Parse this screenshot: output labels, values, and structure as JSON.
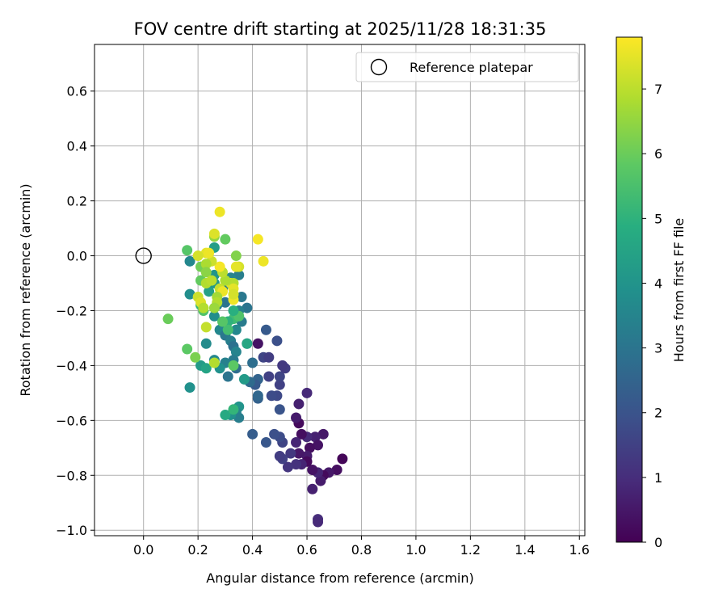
{
  "chart_data": {
    "type": "scatter",
    "title": "FOV centre drift starting at 2025/11/28 18:31:35",
    "xlabel": "Angular distance from reference (arcmin)",
    "ylabel": "Rotation from reference (arcmin)",
    "xlim": [
      -0.18,
      1.62
    ],
    "ylim": [
      -1.02,
      0.77
    ],
    "xticks": [
      "0.0",
      "0.2",
      "0.4",
      "0.6",
      "0.8",
      "1.0",
      "1.2",
      "1.4",
      "1.6"
    ],
    "xtick_values": [
      0,
      0.2,
      0.4,
      0.6,
      0.8,
      1.0,
      1.2,
      1.4,
      1.6
    ],
    "yticks": [
      "−1.0",
      "−0.8",
      "−0.6",
      "−0.4",
      "−0.2",
      "0.0",
      "0.2",
      "0.4",
      "0.6"
    ],
    "ytick_values": [
      -1.0,
      -0.8,
      -0.6,
      -0.4,
      -0.2,
      0.0,
      0.2,
      0.4,
      0.6
    ],
    "grid": true,
    "legend": {
      "position": "top-right",
      "label": "Reference platepar"
    },
    "reference_point": [
      0.0,
      0.0
    ],
    "colorbar": {
      "label": "Hours from first FF file",
      "range": [
        0,
        7.8
      ],
      "ticks": [
        "0",
        "1",
        "2",
        "3",
        "4",
        "5",
        "6",
        "7"
      ],
      "tick_values": [
        0,
        1,
        2,
        3,
        4,
        5,
        6,
        7
      ],
      "colormap": "viridis"
    },
    "points": [
      [
        0.73,
        -0.74,
        0.1
      ],
      [
        0.71,
        -0.78,
        0.3
      ],
      [
        0.68,
        -0.79,
        0.5
      ],
      [
        0.66,
        -0.8,
        0.2
      ],
      [
        0.65,
        -0.82,
        0.6
      ],
      [
        0.64,
        -0.79,
        0.8
      ],
      [
        0.62,
        -0.78,
        0.4
      ],
      [
        0.62,
        -0.85,
        0.7
      ],
      [
        0.64,
        -0.96,
        1.0
      ],
      [
        0.64,
        -0.97,
        0.9
      ],
      [
        0.66,
        -0.65,
        0.5
      ],
      [
        0.63,
        -0.66,
        0.7
      ],
      [
        0.64,
        -0.69,
        0.4
      ],
      [
        0.6,
        -0.66,
        0.9
      ],
      [
        0.61,
        -0.7,
        0.3
      ],
      [
        0.6,
        -0.73,
        0.6
      ],
      [
        0.6,
        -0.75,
        0.2
      ],
      [
        0.58,
        -0.76,
        0.8
      ],
      [
        0.56,
        -0.76,
        1.1
      ],
      [
        0.57,
        -0.72,
        0.5
      ],
      [
        0.58,
        -0.65,
        0.3
      ],
      [
        0.56,
        -0.68,
        0.8
      ],
      [
        0.57,
        -0.61,
        0.2
      ],
      [
        0.56,
        -0.59,
        0.6
      ],
      [
        0.57,
        -0.54,
        0.7
      ],
      [
        0.6,
        -0.5,
        0.9
      ],
      [
        0.54,
        -0.72,
        1.3
      ],
      [
        0.53,
        -0.77,
        1.2
      ],
      [
        0.51,
        -0.74,
        1.5
      ],
      [
        0.5,
        -0.73,
        1.4
      ],
      [
        0.51,
        -0.68,
        1.6
      ],
      [
        0.5,
        -0.66,
        1.8
      ],
      [
        0.48,
        -0.65,
        1.9
      ],
      [
        0.5,
        -0.47,
        1.5
      ],
      [
        0.5,
        -0.44,
        1.6
      ],
      [
        0.52,
        -0.41,
        1.4
      ],
      [
        0.51,
        -0.4,
        1.3
      ],
      [
        0.49,
        -0.51,
        1.7
      ],
      [
        0.47,
        -0.51,
        1.8
      ],
      [
        0.46,
        -0.44,
        1.5
      ],
      [
        0.44,
        -0.37,
        1.6
      ],
      [
        0.46,
        -0.37,
        1.4
      ],
      [
        0.42,
        -0.32,
        0.4
      ],
      [
        0.45,
        -0.27,
        2.2
      ],
      [
        0.49,
        -0.31,
        1.9
      ],
      [
        0.5,
        -0.56,
        2.0
      ],
      [
        0.45,
        -0.68,
        2.1
      ],
      [
        0.4,
        -0.65,
        2.3
      ],
      [
        0.42,
        -0.52,
        2.4
      ],
      [
        0.42,
        -0.45,
        2.5
      ],
      [
        0.41,
        -0.47,
        2.2
      ],
      [
        0.42,
        -0.51,
        2.6
      ],
      [
        0.39,
        -0.46,
        2.7
      ],
      [
        0.4,
        -0.39,
        2.8
      ],
      [
        0.38,
        -0.32,
        2.9
      ],
      [
        0.38,
        -0.19,
        3.0
      ],
      [
        0.36,
        -0.24,
        3.2
      ],
      [
        0.35,
        -0.2,
        3.4
      ],
      [
        0.36,
        -0.15,
        3.1
      ],
      [
        0.34,
        -0.27,
        3.6
      ],
      [
        0.35,
        -0.07,
        3.3
      ],
      [
        0.32,
        -0.08,
        3.5
      ],
      [
        0.31,
        -0.1,
        3.7
      ],
      [
        0.29,
        -0.12,
        3.2
      ],
      [
        0.3,
        -0.17,
        3.0
      ],
      [
        0.27,
        -0.18,
        3.4
      ],
      [
        0.26,
        -0.22,
        3.8
      ],
      [
        0.28,
        -0.27,
        3.6
      ],
      [
        0.3,
        -0.29,
        3.1
      ],
      [
        0.32,
        -0.31,
        3.3
      ],
      [
        0.33,
        -0.33,
        2.9
      ],
      [
        0.34,
        -0.35,
        3.5
      ],
      [
        0.33,
        -0.38,
        3.2
      ],
      [
        0.34,
        -0.41,
        2.8
      ],
      [
        0.31,
        -0.44,
        3.0
      ],
      [
        0.3,
        -0.39,
        3.4
      ],
      [
        0.28,
        -0.41,
        3.9
      ],
      [
        0.26,
        -0.38,
        3.6
      ],
      [
        0.23,
        -0.32,
        3.7
      ],
      [
        0.21,
        -0.4,
        4.2
      ],
      [
        0.23,
        -0.41,
        4.5
      ],
      [
        0.17,
        -0.48,
        3.9
      ],
      [
        0.17,
        -0.14,
        3.8
      ],
      [
        0.17,
        -0.02,
        3.6
      ],
      [
        0.26,
        0.03,
        4.3
      ],
      [
        0.26,
        -0.07,
        4.0
      ],
      [
        0.24,
        -0.13,
        4.4
      ],
      [
        0.26,
        -0.1,
        4.1
      ],
      [
        0.38,
        -0.32,
        4.6
      ],
      [
        0.37,
        -0.45,
        4.2
      ],
      [
        0.35,
        -0.55,
        4.0
      ],
      [
        0.34,
        -0.57,
        3.5
      ],
      [
        0.35,
        -0.59,
        3.3
      ],
      [
        0.32,
        -0.58,
        3.9
      ],
      [
        0.3,
        -0.58,
        4.7
      ],
      [
        0.33,
        -0.56,
        5.1
      ],
      [
        0.33,
        -0.23,
        5.3
      ],
      [
        0.35,
        -0.22,
        5.6
      ],
      [
        0.33,
        -0.2,
        4.9
      ],
      [
        0.31,
        -0.24,
        5.0
      ],
      [
        0.31,
        -0.27,
        5.4
      ],
      [
        0.29,
        -0.24,
        5.7
      ],
      [
        0.33,
        -0.4,
        5.8
      ],
      [
        0.22,
        -0.2,
        5.6
      ],
      [
        0.21,
        -0.18,
        5.2
      ],
      [
        0.21,
        -0.09,
        5.9
      ],
      [
        0.21,
        -0.04,
        6.1
      ],
      [
        0.16,
        -0.34,
        5.8
      ],
      [
        0.19,
        -0.37,
        6.2
      ],
      [
        0.09,
        -0.23,
        6.0
      ],
      [
        0.16,
        0.02,
        5.7
      ],
      [
        0.3,
        0.06,
        5.9
      ],
      [
        0.34,
        0.0,
        6.3
      ],
      [
        0.26,
        0.07,
        6.5
      ],
      [
        0.26,
        0.08,
        7.4
      ],
      [
        0.28,
        0.16,
        7.6
      ],
      [
        0.42,
        0.06,
        7.7
      ],
      [
        0.44,
        -0.02,
        7.6
      ],
      [
        0.35,
        -0.04,
        7.3
      ],
      [
        0.34,
        -0.04,
        7.5
      ],
      [
        0.32,
        -0.1,
        7.4
      ],
      [
        0.33,
        -0.1,
        6.9
      ],
      [
        0.3,
        -0.09,
        6.8
      ],
      [
        0.28,
        -0.12,
        7.1
      ],
      [
        0.29,
        -0.13,
        7.6
      ],
      [
        0.27,
        -0.15,
        6.7
      ],
      [
        0.27,
        -0.17,
        6.9
      ],
      [
        0.26,
        -0.19,
        6.6
      ],
      [
        0.29,
        -0.06,
        7.0
      ],
      [
        0.28,
        -0.04,
        7.7
      ],
      [
        0.25,
        -0.02,
        7.2
      ],
      [
        0.23,
        0.01,
        7.5
      ],
      [
        0.2,
        0.0,
        7.3
      ],
      [
        0.24,
        0.01,
        7.6
      ],
      [
        0.23,
        -0.03,
        6.8
      ],
      [
        0.23,
        -0.06,
        6.4
      ],
      [
        0.23,
        -0.1,
        6.9
      ],
      [
        0.25,
        -0.09,
        7.0
      ],
      [
        0.2,
        -0.15,
        7.2
      ],
      [
        0.21,
        -0.17,
        7.4
      ],
      [
        0.22,
        -0.19,
        6.9
      ],
      [
        0.23,
        -0.26,
        7.1
      ],
      [
        0.33,
        -0.16,
        7.6
      ],
      [
        0.33,
        -0.12,
        7.5
      ],
      [
        0.33,
        -0.14,
        7.3
      ],
      [
        0.26,
        -0.39,
        6.9
      ]
    ]
  }
}
